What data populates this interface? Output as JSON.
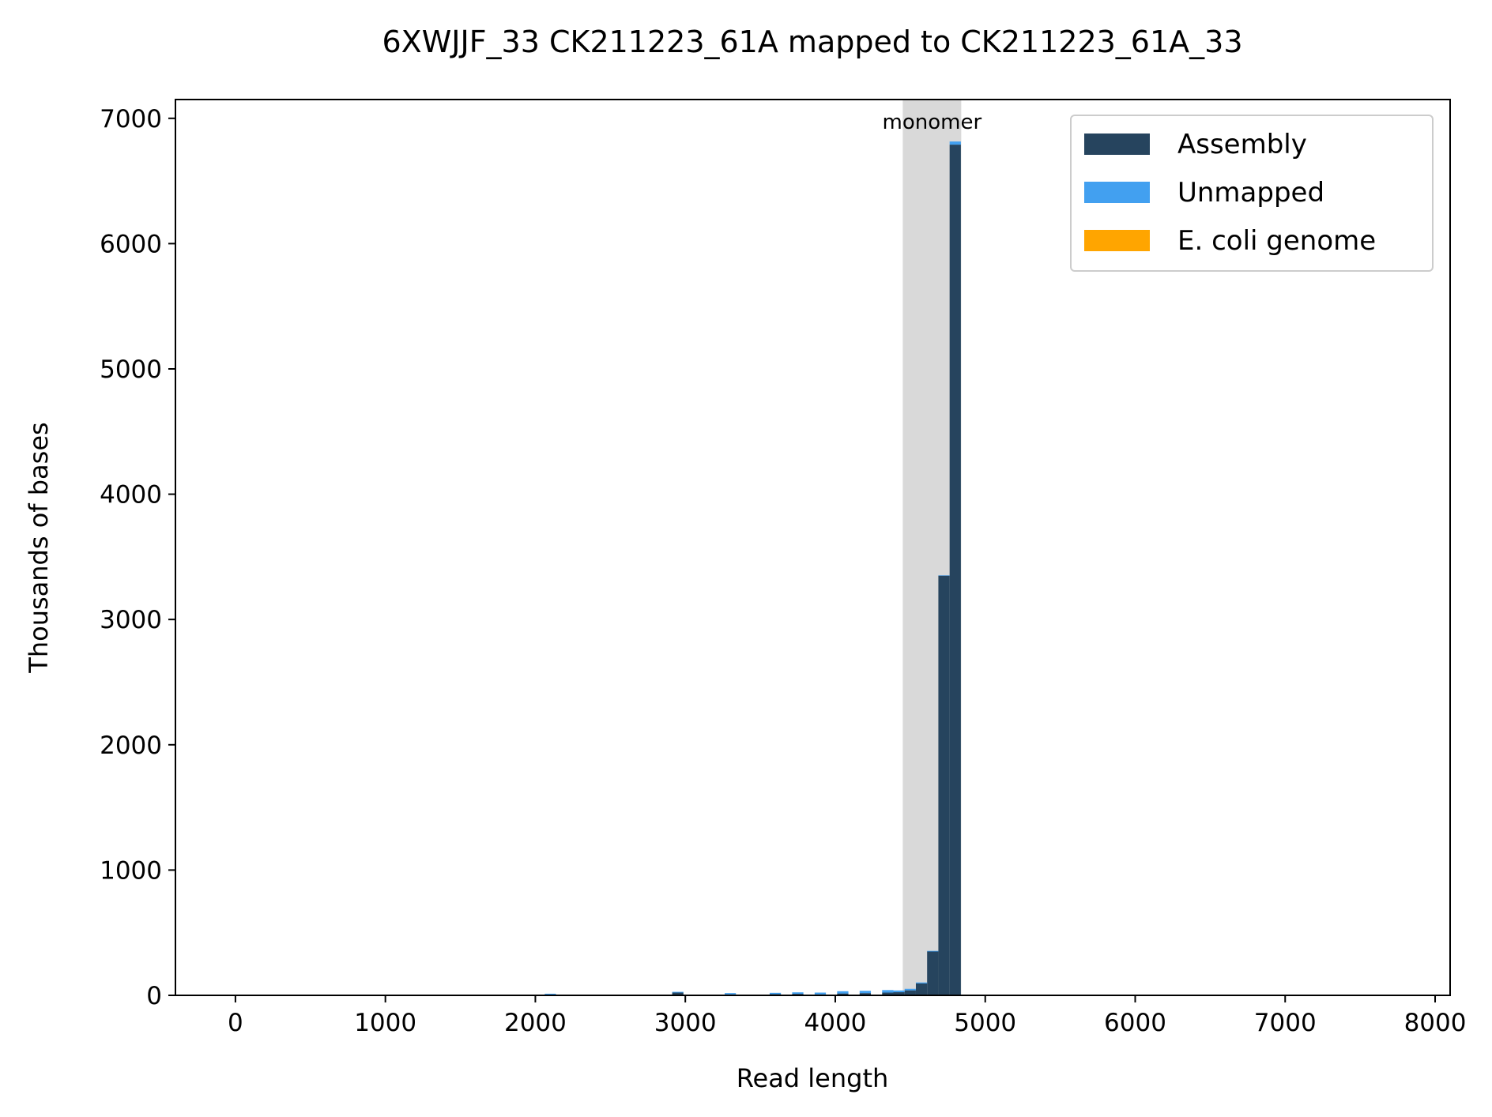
{
  "chart_data": {
    "type": "bar",
    "title": "6XWJJF_33 CK211223_61A mapped to CK211223_61A_33",
    "xlabel": "Read length",
    "ylabel": "Thousands of bases",
    "xlim": [
      -400,
      8100
    ],
    "ylim": [
      0,
      7150
    ],
    "xticks": [
      0,
      1000,
      2000,
      3000,
      4000,
      5000,
      6000,
      7000,
      8000
    ],
    "yticks": [
      0,
      1000,
      2000,
      3000,
      4000,
      5000,
      6000,
      7000
    ],
    "bin_width": 75,
    "legend_position": "top-right",
    "region": {
      "label": "monomer",
      "x_start": 4450,
      "x_end": 4840,
      "color": "#d9d9d9"
    },
    "series": [
      {
        "name": "Assembly",
        "color": "#26445e",
        "x": [
          2100,
          2950,
          3300,
          3600,
          3750,
          3900,
          4050,
          4200,
          4350,
          4425,
          4500,
          4575,
          4650,
          4725,
          4800
        ],
        "values": [
          5,
          22,
          8,
          10,
          12,
          8,
          15,
          18,
          22,
          25,
          40,
          95,
          350,
          3350,
          6790
        ]
      },
      {
        "name": "Unmapped",
        "color": "#42a0f0",
        "x": [
          2100,
          2950,
          3300,
          3600,
          3750,
          3900,
          4050,
          4200,
          4350,
          4425,
          4500,
          4575,
          4650,
          4725,
          4800
        ],
        "values": [
          8,
          6,
          10,
          10,
          12,
          14,
          18,
          18,
          20,
          14,
          12,
          8,
          5,
          3,
          25
        ]
      },
      {
        "name": "E. coli genome",
        "color": "#ffa500",
        "x": [
          800,
          1050,
          1250,
          1500,
          1700,
          5800
        ],
        "values": [
          5,
          5,
          4,
          6,
          5,
          4
        ]
      }
    ]
  }
}
